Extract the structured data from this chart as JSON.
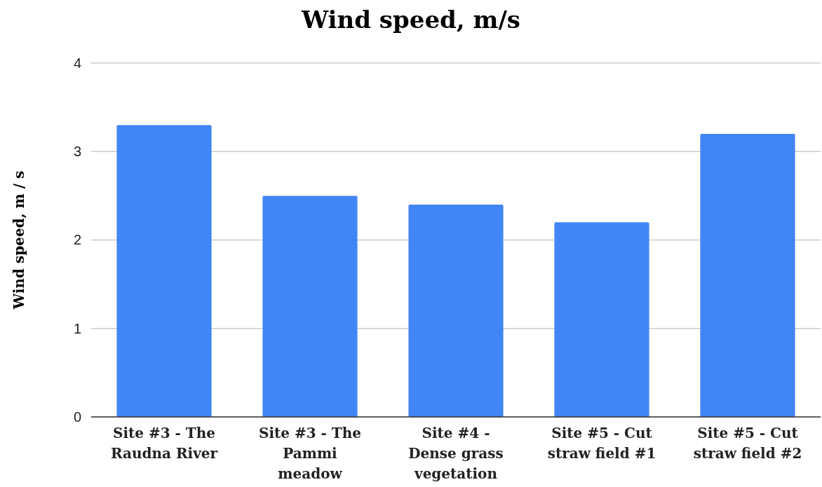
{
  "chart_data": {
    "type": "bar",
    "title": "Wind speed, m/s",
    "ylabel": "Wind speed, m / s",
    "categories": [
      "Site #3 - The Raudna River",
      "Site #3 - The Pammi meadow",
      "Site #4 - Dense grass vegetation",
      "Site #5 - Cut straw field #1",
      "Site #5 - Cut straw field #2"
    ],
    "values": [
      3.3,
      2.5,
      2.4,
      2.2,
      3.2
    ],
    "color": "#4285f4",
    "ylim": [
      0,
      4
    ],
    "yticks": [
      0,
      1,
      2,
      3,
      4
    ],
    "grid": "y"
  }
}
